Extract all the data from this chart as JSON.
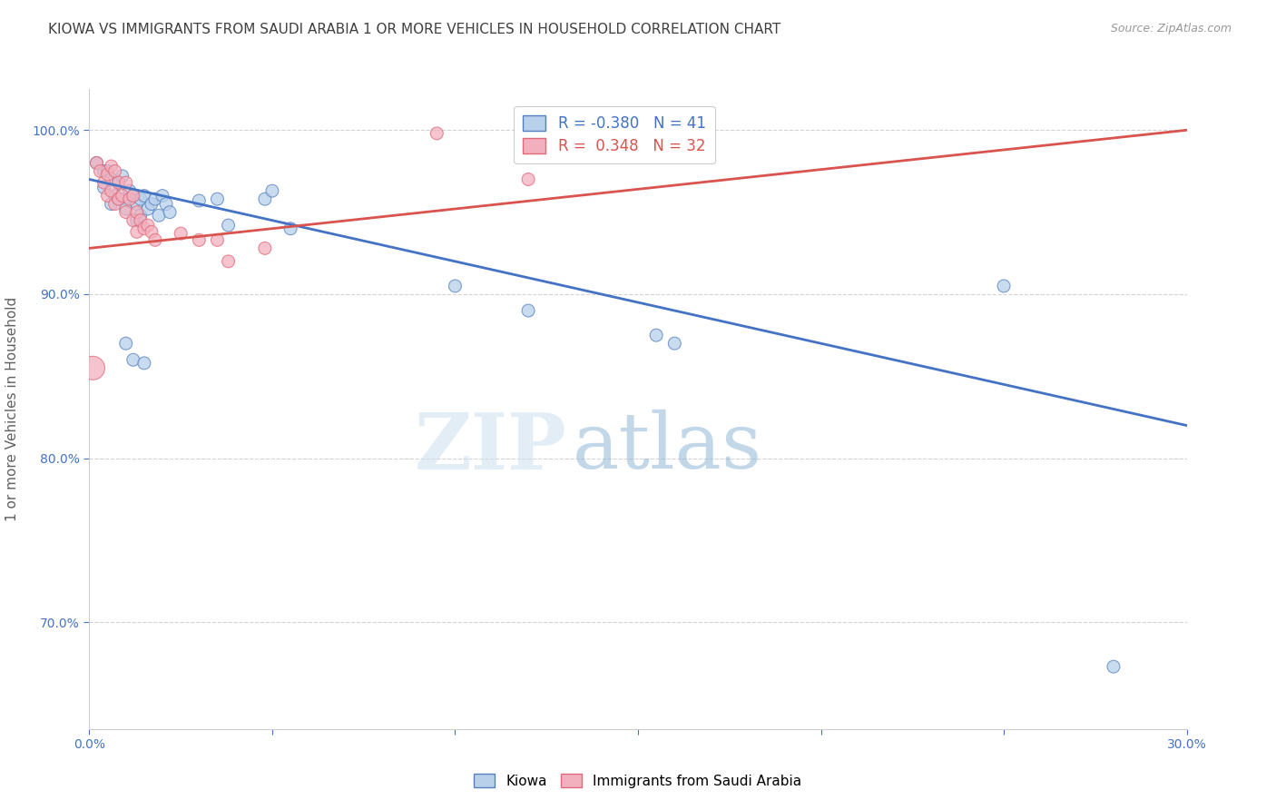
{
  "title": "KIOWA VS IMMIGRANTS FROM SAUDI ARABIA 1 OR MORE VEHICLES IN HOUSEHOLD CORRELATION CHART",
  "source": "Source: ZipAtlas.com",
  "xlabel": "",
  "ylabel": "1 or more Vehicles in Household",
  "xlim": [
    0.0,
    0.3
  ],
  "ylim": [
    0.635,
    1.025
  ],
  "xticks": [
    0.0,
    0.05,
    0.1,
    0.15,
    0.2,
    0.25,
    0.3
  ],
  "xticklabels": [
    "0.0%",
    "",
    "",
    "",
    "",
    "",
    "30.0%"
  ],
  "yticks": [
    0.7,
    0.8,
    0.9,
    1.0
  ],
  "yticklabels": [
    "70.0%",
    "80.0%",
    "90.0%",
    "100.0%"
  ],
  "legend_r_blue": "R = -0.380",
  "legend_n_blue": "N = 41",
  "legend_r_pink": "R =  0.348",
  "legend_n_pink": "N = 32",
  "watermark_zip": "ZIP",
  "watermark_atlas": "atlas",
  "blue_fill": "#b8d0ea",
  "pink_fill": "#f2b0be",
  "blue_edge": "#5580c0",
  "pink_edge": "#e06878",
  "blue_line": "#4472c4",
  "pink_line": "#d9534f",
  "background_color": "#ffffff",
  "grid_color": "#c8c8c8",
  "title_color": "#404040",
  "axis_color": "#4472c4",
  "ylabel_color": "#606060",
  "kiowa_x": [
    0.002,
    0.004,
    0.004,
    0.005,
    0.006,
    0.006,
    0.007,
    0.008,
    0.008,
    0.009,
    0.01,
    0.01,
    0.011,
    0.012,
    0.013,
    0.013,
    0.014,
    0.014,
    0.015,
    0.016,
    0.017,
    0.018,
    0.019,
    0.02,
    0.021,
    0.022,
    0.03,
    0.035,
    0.038,
    0.048,
    0.05,
    0.055,
    0.01,
    0.012,
    0.015,
    0.1,
    0.12,
    0.155,
    0.16,
    0.25,
    0.28
  ],
  "kiowa_y": [
    0.98,
    0.975,
    0.965,
    0.975,
    0.97,
    0.955,
    0.96,
    0.968,
    0.958,
    0.972,
    0.958,
    0.952,
    0.963,
    0.96,
    0.955,
    0.945,
    0.958,
    0.948,
    0.96,
    0.952,
    0.955,
    0.958,
    0.948,
    0.96,
    0.955,
    0.95,
    0.957,
    0.958,
    0.942,
    0.958,
    0.963,
    0.94,
    0.87,
    0.86,
    0.858,
    0.905,
    0.89,
    0.875,
    0.87,
    0.905,
    0.673
  ],
  "kiowa_sizes": [
    100,
    100,
    100,
    100,
    100,
    100,
    100,
    100,
    100,
    100,
    100,
    100,
    100,
    100,
    100,
    100,
    100,
    100,
    100,
    100,
    100,
    100,
    100,
    100,
    100,
    100,
    100,
    100,
    100,
    100,
    100,
    100,
    100,
    100,
    100,
    100,
    100,
    100,
    100,
    100,
    100
  ],
  "saudi_x": [
    0.002,
    0.003,
    0.004,
    0.005,
    0.005,
    0.006,
    0.006,
    0.007,
    0.007,
    0.008,
    0.008,
    0.009,
    0.01,
    0.01,
    0.011,
    0.012,
    0.012,
    0.013,
    0.013,
    0.014,
    0.015,
    0.016,
    0.017,
    0.018,
    0.025,
    0.03,
    0.035,
    0.038,
    0.048,
    0.095,
    0.12,
    0.001
  ],
  "saudi_y": [
    0.98,
    0.975,
    0.968,
    0.973,
    0.96,
    0.978,
    0.963,
    0.975,
    0.955,
    0.968,
    0.958,
    0.96,
    0.968,
    0.95,
    0.958,
    0.96,
    0.945,
    0.95,
    0.938,
    0.945,
    0.94,
    0.942,
    0.938,
    0.933,
    0.937,
    0.933,
    0.933,
    0.92,
    0.928,
    0.998,
    0.97,
    0.855
  ],
  "saudi_sizes": [
    100,
    100,
    100,
    100,
    100,
    100,
    100,
    100,
    100,
    100,
    100,
    100,
    100,
    100,
    100,
    100,
    100,
    100,
    100,
    100,
    100,
    100,
    100,
    100,
    100,
    100,
    100,
    100,
    100,
    100,
    100,
    350
  ]
}
